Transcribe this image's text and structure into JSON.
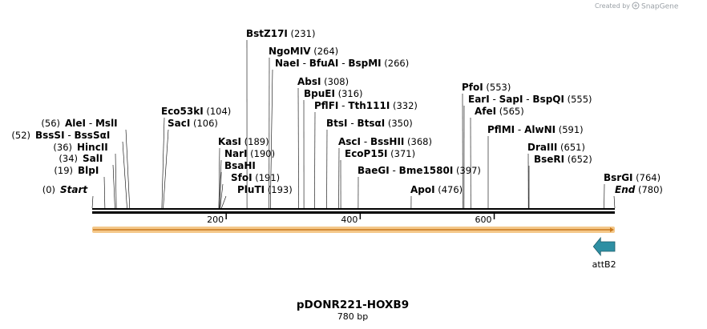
{
  "credit": {
    "created_by": "Created by",
    "brand": "SnapGene"
  },
  "plasmid": {
    "name": "pDONR221-HOXB9",
    "length_label": "780 bp",
    "length": 780
  },
  "scale_ticks": [
    {
      "pos": 200,
      "label": "200"
    },
    {
      "pos": 400,
      "label": "400"
    },
    {
      "pos": 600,
      "label": "600"
    }
  ],
  "sites": [
    {
      "names": [
        "Start"
      ],
      "italic": true,
      "pos_label": "(0)",
      "pos": 0
    },
    {
      "names": [
        "BlpI"
      ],
      "pos_label": "(19)",
      "pos": 19
    },
    {
      "names": [
        "SalI"
      ],
      "pos_label": "(34)",
      "pos": 34
    },
    {
      "names": [
        "HincII"
      ],
      "pos_label": "(36)",
      "pos": 36
    },
    {
      "names": [
        "BssSI",
        "BssSαI"
      ],
      "pos_label": "(52)",
      "pos": 52
    },
    {
      "names": [
        "AleI",
        "MslI"
      ],
      "pos_label": "(56)",
      "pos": 56
    },
    {
      "names": [
        "Eco53kI"
      ],
      "pos_label": "(104)",
      "pos": 104
    },
    {
      "names": [
        "SacI"
      ],
      "pos_label": "(106)",
      "pos": 106
    },
    {
      "names": [
        "KasI"
      ],
      "pos_label": "(189)",
      "pos": 189
    },
    {
      "names": [
        "NarI"
      ],
      "pos_label": "(190)",
      "pos": 190
    },
    {
      "names": [
        "BsaHI"
      ],
      "pos_label": "",
      "pos": 190
    },
    {
      "names": [
        "SfoI"
      ],
      "pos_label": "(191)",
      "pos": 191
    },
    {
      "names": [
        "PluTI"
      ],
      "pos_label": "(193)",
      "pos": 193
    },
    {
      "names": [
        "BstZ17I"
      ],
      "pos_label": "(231)",
      "pos": 231
    },
    {
      "names": [
        "NgoMIV"
      ],
      "pos_label": "(264)",
      "pos": 264
    },
    {
      "names": [
        "NaeI",
        "BfuAI",
        "BspMI"
      ],
      "pos_label": "(266)",
      "pos": 266
    },
    {
      "names": [
        "AbsI"
      ],
      "pos_label": "(308)",
      "pos": 308
    },
    {
      "names": [
        "BpuEI"
      ],
      "pos_label": "(316)",
      "pos": 316
    },
    {
      "names": [
        "PflFI",
        "Tth111I"
      ],
      "pos_label": "(332)",
      "pos": 332
    },
    {
      "names": [
        "BtsI",
        "BtsαI"
      ],
      "pos_label": "(350)",
      "pos": 350
    },
    {
      "names": [
        "AscI",
        "BssHII"
      ],
      "pos_label": "(368)",
      "pos": 368
    },
    {
      "names": [
        "EcoP15I"
      ],
      "pos_label": "(371)",
      "pos": 371
    },
    {
      "names": [
        "BaeGI",
        "Bme1580I"
      ],
      "pos_label": "(397)",
      "pos": 397
    },
    {
      "names": [
        "ApoI"
      ],
      "pos_label": "(476)",
      "pos": 476
    },
    {
      "names": [
        "PfoI"
      ],
      "pos_label": "(553)",
      "pos": 553
    },
    {
      "names": [
        "EarI",
        "SapI",
        "BspQI"
      ],
      "pos_label": "(555)",
      "pos": 555
    },
    {
      "names": [
        "AfeI"
      ],
      "pos_label": "(565)",
      "pos": 565
    },
    {
      "names": [
        "PflMI",
        "AlwNI"
      ],
      "pos_label": "(591)",
      "pos": 591
    },
    {
      "names": [
        "DraIII"
      ],
      "pos_label": "(651)",
      "pos": 651
    },
    {
      "names": [
        "BseRI"
      ],
      "pos_label": "(652)",
      "pos": 652
    },
    {
      "names": [
        "BsrGI"
      ],
      "pos_label": "(764)",
      "pos": 764
    },
    {
      "names": [
        "End"
      ],
      "italic": true,
      "pos_label": "(780)",
      "pos": 780
    }
  ],
  "features": [
    {
      "name": "attB2",
      "start": 748,
      "end": 780,
      "direction": "reverse",
      "color": "#2e8fa3"
    }
  ],
  "colors": {
    "backbone": "#000000",
    "orf_bar": "#f4c88a",
    "orf_line": "#c9781c"
  }
}
